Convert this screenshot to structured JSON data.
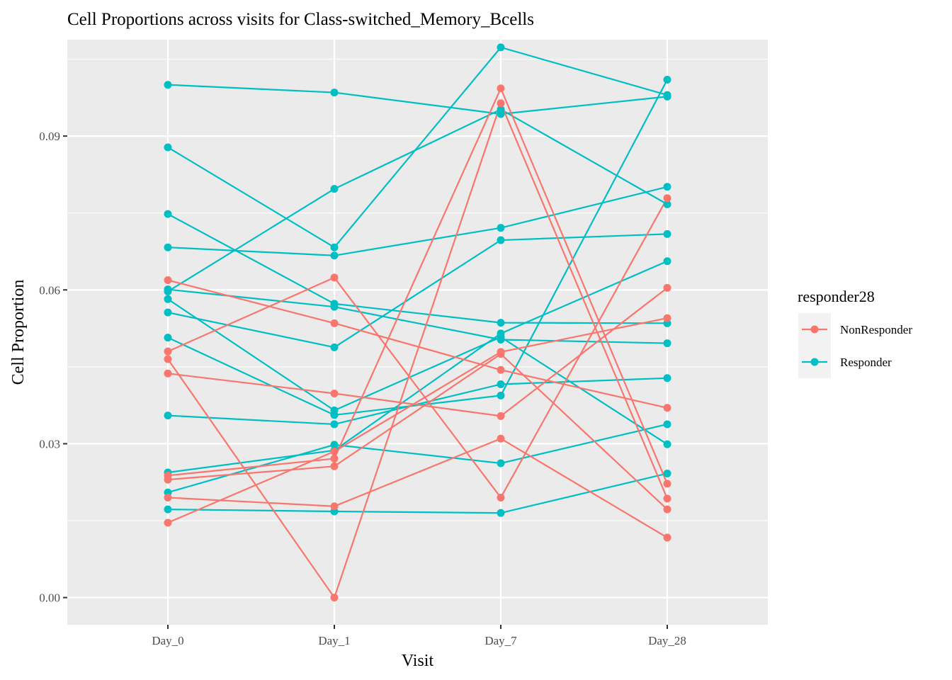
{
  "chart_data": {
    "type": "line",
    "title": "Cell Proportions across visits for Class-switched_Memory_Bcells",
    "xlabel": "Visit",
    "ylabel": "Cell Proportion",
    "categories": [
      "Day_0",
      "Day_1",
      "Day_7",
      "Day_28"
    ],
    "ylim": [
      -0.0053,
      0.1088
    ],
    "yticks": [
      0.0,
      0.03,
      0.06,
      0.09
    ],
    "ytick_labels": [
      "0.00",
      "0.03",
      "0.06",
      "0.09"
    ],
    "grid": true,
    "legend": {
      "title": "responder28",
      "placement": "right",
      "entries": [
        {
          "label": "NonResponder",
          "color": "#F8766D"
        },
        {
          "label": "Responder",
          "color": "#00BFC4"
        }
      ]
    },
    "group_colors": {
      "NonResponder": "#F8766D",
      "Responder": "#00BFC4"
    },
    "series": [
      {
        "group": "Responder",
        "values": [
          0.1,
          0.0985,
          0.0943,
          0.0977
        ]
      },
      {
        "group": "Responder",
        "values": [
          0.0878,
          0.0683,
          0.1073,
          0.098
        ]
      },
      {
        "group": "Responder",
        "values": [
          0.0748,
          0.0573,
          0.0536,
          0.0535
        ]
      },
      {
        "group": "Responder",
        "values": [
          0.0683,
          0.0667,
          0.0721,
          0.0801
        ]
      },
      {
        "group": "Responder",
        "values": [
          0.0601,
          0.0567,
          0.0503,
          0.0496
        ]
      },
      {
        "group": "Responder",
        "values": [
          0.0597,
          0.0797,
          0.0952,
          0.0767
        ]
      },
      {
        "group": "Responder",
        "values": [
          0.0582,
          0.0365,
          0.0508,
          0.0299
        ]
      },
      {
        "group": "Responder",
        "values": [
          0.0556,
          0.0488,
          0.0697,
          0.0709
        ]
      },
      {
        "group": "Responder",
        "values": [
          0.0507,
          0.0356,
          0.0394,
          0.101
        ]
      },
      {
        "group": "Responder",
        "values": [
          0.0355,
          0.0338,
          0.0416,
          0.0428
        ]
      },
      {
        "group": "Responder",
        "values": [
          0.0244,
          0.0287,
          0.0515,
          0.0656
        ]
      },
      {
        "group": "Responder",
        "values": [
          0.0205,
          0.0298,
          0.0262,
          0.0338
        ]
      },
      {
        "group": "Responder",
        "values": [
          0.0172,
          0.0168,
          0.0165,
          0.0242
        ]
      },
      {
        "group": "NonResponder",
        "values": [
          0.0619,
          0.0535,
          0.0444,
          0.037
        ]
      },
      {
        "group": "NonResponder",
        "values": [
          0.048,
          0.0624,
          0.0195,
          0.0779
        ]
      },
      {
        "group": "NonResponder",
        "values": [
          0.0465,
          0.0,
          0.0964,
          0.0193
        ]
      },
      {
        "group": "NonResponder",
        "values": [
          0.0437,
          0.0398,
          0.0354,
          0.0604
        ]
      },
      {
        "group": "NonResponder",
        "values": [
          0.0238,
          0.0271,
          0.0993,
          0.0222
        ]
      },
      {
        "group": "NonResponder",
        "values": [
          0.023,
          0.0256,
          0.0475,
          0.0172
        ]
      },
      {
        "group": "NonResponder",
        "values": [
          0.0195,
          0.0178,
          0.031,
          0.0117
        ]
      },
      {
        "group": "NonResponder",
        "values": [
          0.0146,
          0.0285,
          0.0479,
          0.0545
        ]
      }
    ]
  }
}
